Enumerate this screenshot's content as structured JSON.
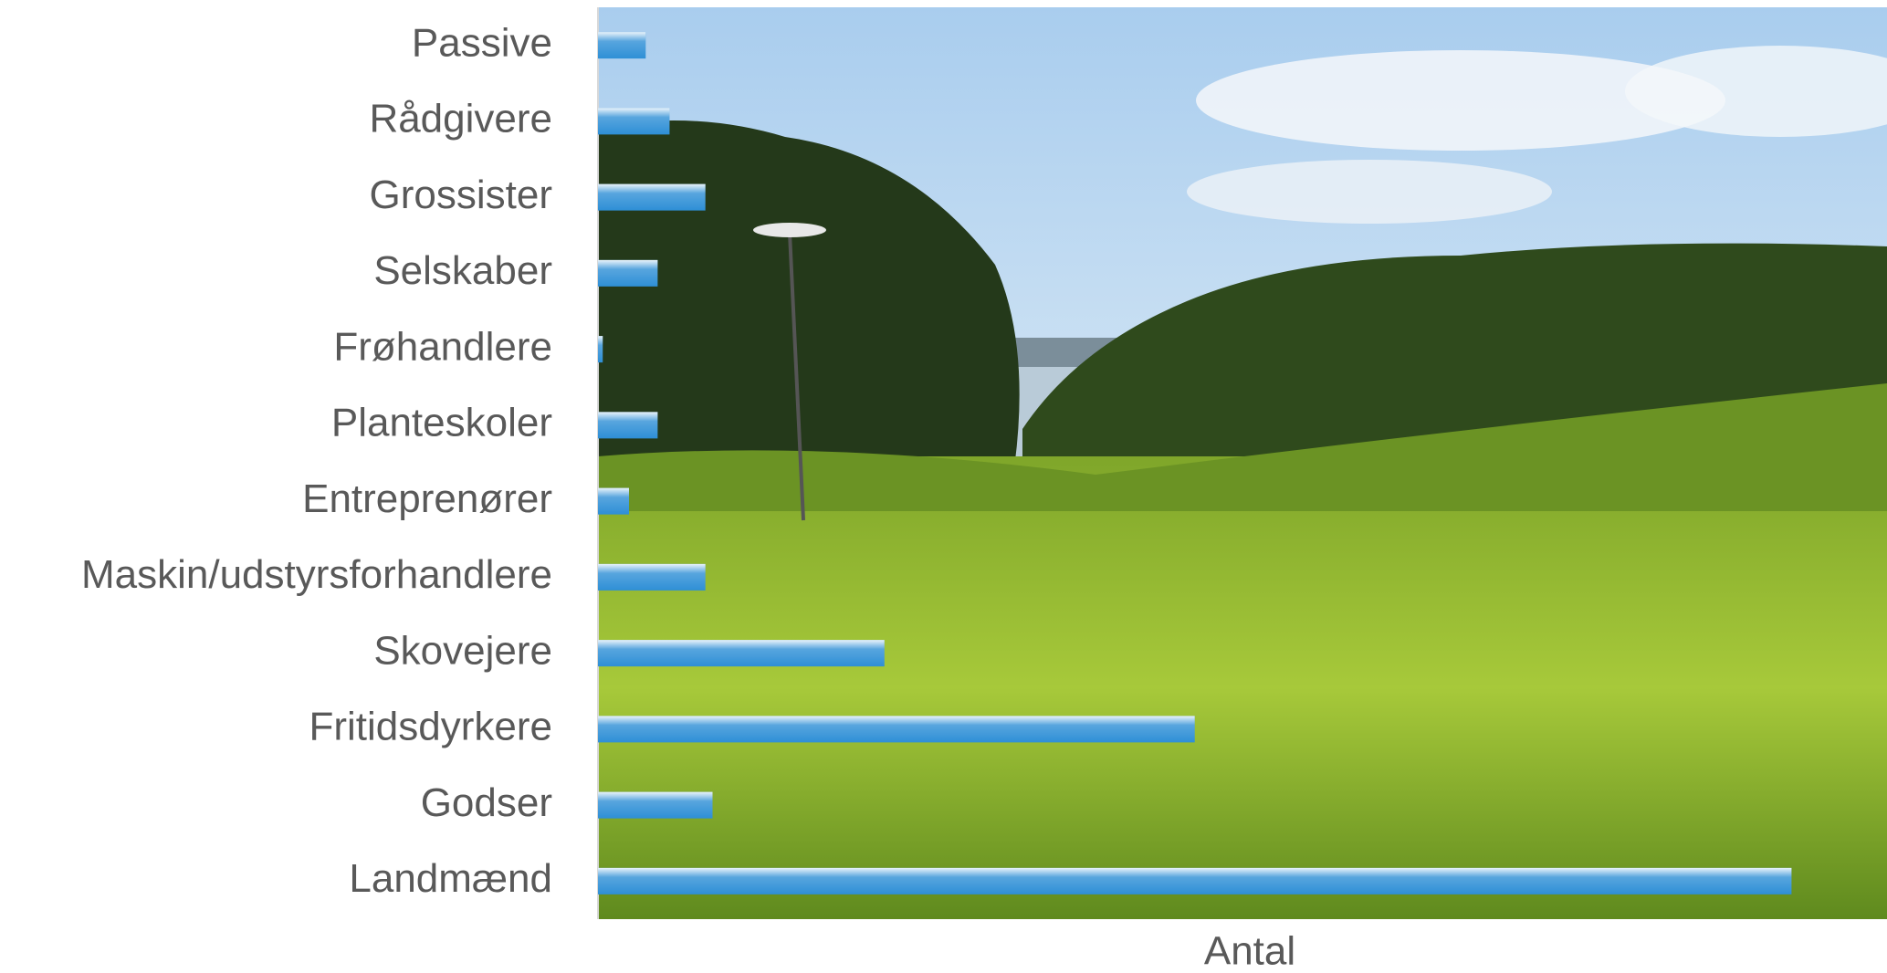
{
  "chart_data": {
    "type": "bar",
    "orientation": "horizontal",
    "x_label": "Antal",
    "categories": [
      "Passive",
      "Rådgivere",
      "Grossister",
      "Selskaber",
      "Frøhandlere",
      "Planteskoler",
      "Entreprenører",
      "Maskin/udstyrsforhandlere",
      "Skovejere",
      "Fritidsdyrkere",
      "Godser",
      "Landmænd"
    ],
    "values": [
      4,
      6,
      9,
      5,
      0.4,
      5,
      2.6,
      9,
      24,
      50,
      9.6,
      100
    ],
    "color": "#2e8fd6",
    "xlim": [
      0,
      108
    ]
  }
}
